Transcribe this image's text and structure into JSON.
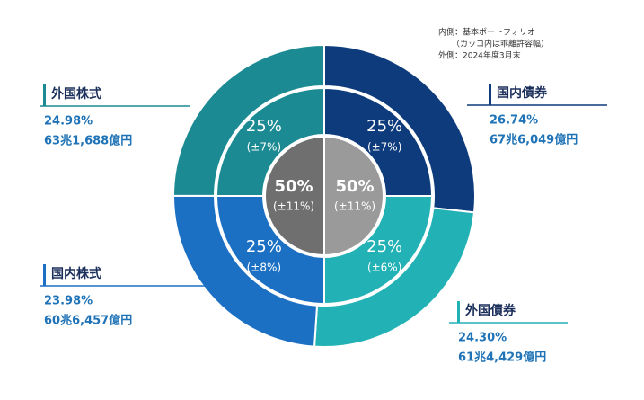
{
  "chart_data": {
    "type": "nested-donut",
    "notes": [
      "内側：基本ポートフォリオ",
      "（カッコ内は乖離許容幅）",
      "外側：2024年度3月末"
    ],
    "categories": [
      "国内債券",
      "外国債券",
      "国内株式",
      "外国株式"
    ],
    "colors": [
      "#0e3b7c",
      "#22b2b5",
      "#1c70c4",
      "#1b8a92"
    ],
    "values": [
      26.74,
      24.3,
      23.98,
      24.98
    ],
    "value_labels": [
      "26.74%",
      "24.30%",
      "23.98%",
      "24.98%"
    ],
    "amounts": [
      "67兆6,049億円",
      "61兆4,429億円",
      "60兆6,457億円",
      "63兆1,688億円"
    ],
    "policy": {
      "values": [
        25,
        25,
        25,
        25
      ],
      "value_labels": [
        "25%",
        "25%",
        "25%",
        "25%"
      ],
      "ranges": [
        "(±7%)",
        "(±6%)",
        "(±8%)",
        "(±7%)"
      ]
    },
    "center": {
      "values": [
        50,
        50
      ],
      "value_labels": [
        "50%",
        "50%"
      ],
      "ranges": [
        "(±11%)",
        "(±11%)"
      ],
      "colors": [
        "#9a9a9a",
        "#6f6f6f"
      ]
    }
  }
}
